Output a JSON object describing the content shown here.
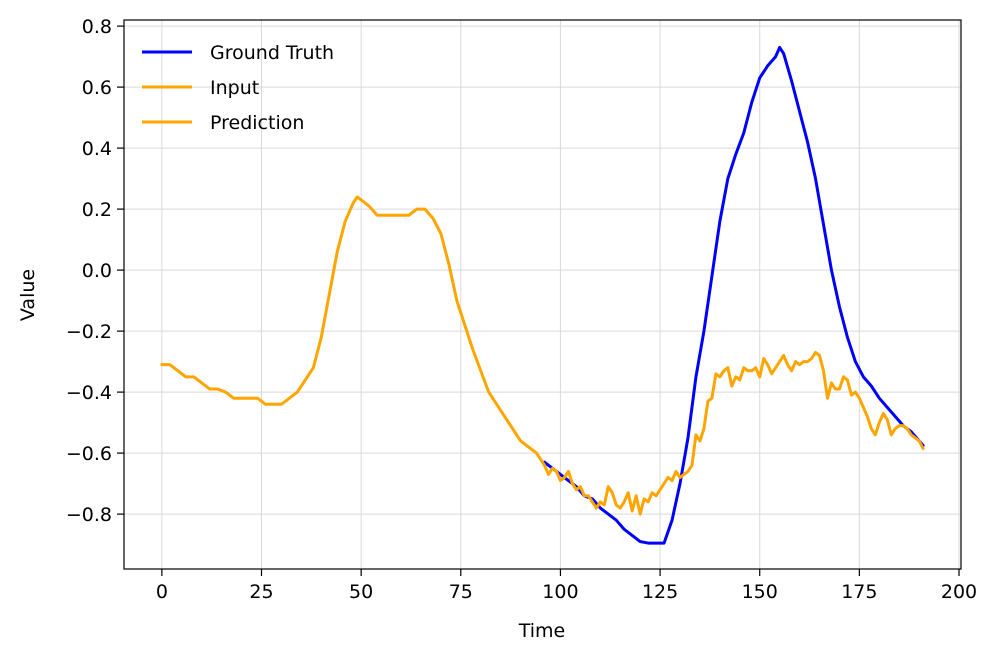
{
  "chart_data": {
    "type": "line",
    "xlabel": "Time",
    "ylabel": "Value",
    "xlim": [
      -9.5,
      200.5
    ],
    "ylim": [
      -0.98,
      0.82
    ],
    "xticks": [
      0,
      25,
      50,
      75,
      100,
      125,
      150,
      175,
      200
    ],
    "yticks": [
      -0.8,
      -0.6,
      -0.4,
      -0.2,
      0.0,
      0.2,
      0.4,
      0.6,
      0.8
    ],
    "xtick_labels": [
      "0",
      "25",
      "50",
      "75",
      "100",
      "125",
      "150",
      "175",
      "200"
    ],
    "ytick_labels": [
      "−0.8",
      "−0.6",
      "−0.4",
      "−0.2",
      "0.0",
      "0.2",
      "0.4",
      "0.6",
      "0.8"
    ],
    "grid": true,
    "legend_position": "upper-left",
    "series": [
      {
        "name": "Ground Truth",
        "color": "#0000ff",
        "points": [
          [
            96,
            -0.63
          ],
          [
            98,
            -0.65
          ],
          [
            100,
            -0.67
          ],
          [
            102,
            -0.69
          ],
          [
            104,
            -0.71
          ],
          [
            106,
            -0.74
          ],
          [
            108,
            -0.75
          ],
          [
            110,
            -0.78
          ],
          [
            112,
            -0.8
          ],
          [
            114,
            -0.82
          ],
          [
            116,
            -0.85
          ],
          [
            118,
            -0.87
          ],
          [
            120,
            -0.89
          ],
          [
            122,
            -0.895
          ],
          [
            124,
            -0.895
          ],
          [
            126,
            -0.895
          ],
          [
            128,
            -0.82
          ],
          [
            130,
            -0.7
          ],
          [
            132,
            -0.55
          ],
          [
            134,
            -0.35
          ],
          [
            136,
            -0.2
          ],
          [
            138,
            -0.02
          ],
          [
            140,
            0.16
          ],
          [
            142,
            0.3
          ],
          [
            144,
            0.38
          ],
          [
            146,
            0.45
          ],
          [
            148,
            0.55
          ],
          [
            150,
            0.63
          ],
          [
            152,
            0.67
          ],
          [
            154,
            0.7
          ],
          [
            155,
            0.73
          ],
          [
            156,
            0.71
          ],
          [
            158,
            0.62
          ],
          [
            160,
            0.52
          ],
          [
            162,
            0.42
          ],
          [
            164,
            0.3
          ],
          [
            166,
            0.15
          ],
          [
            168,
            0.0
          ],
          [
            170,
            -0.12
          ],
          [
            172,
            -0.22
          ],
          [
            174,
            -0.3
          ],
          [
            176,
            -0.35
          ],
          [
            178,
            -0.38
          ],
          [
            180,
            -0.42
          ],
          [
            182,
            -0.45
          ],
          [
            184,
            -0.48
          ],
          [
            186,
            -0.51
          ],
          [
            188,
            -0.53
          ],
          [
            190,
            -0.56
          ],
          [
            191,
            -0.575
          ]
        ]
      },
      {
        "name": "Input",
        "color": "#ffa500",
        "points": [
          [
            0,
            -0.31
          ],
          [
            2,
            -0.31
          ],
          [
            4,
            -0.33
          ],
          [
            6,
            -0.35
          ],
          [
            8,
            -0.35
          ],
          [
            10,
            -0.37
          ],
          [
            12,
            -0.39
          ],
          [
            14,
            -0.39
          ],
          [
            16,
            -0.4
          ],
          [
            18,
            -0.42
          ],
          [
            20,
            -0.42
          ],
          [
            22,
            -0.42
          ],
          [
            24,
            -0.42
          ],
          [
            26,
            -0.44
          ],
          [
            28,
            -0.44
          ],
          [
            30,
            -0.44
          ],
          [
            32,
            -0.42
          ],
          [
            34,
            -0.4
          ],
          [
            36,
            -0.36
          ],
          [
            38,
            -0.32
          ],
          [
            40,
            -0.22
          ],
          [
            42,
            -0.08
          ],
          [
            44,
            0.06
          ],
          [
            46,
            0.16
          ],
          [
            48,
            0.22
          ],
          [
            49,
            0.24
          ],
          [
            50,
            0.23
          ],
          [
            52,
            0.21
          ],
          [
            54,
            0.18
          ],
          [
            56,
            0.18
          ],
          [
            58,
            0.18
          ],
          [
            60,
            0.18
          ],
          [
            62,
            0.18
          ],
          [
            64,
            0.2
          ],
          [
            66,
            0.2
          ],
          [
            68,
            0.17
          ],
          [
            70,
            0.12
          ],
          [
            72,
            0.02
          ],
          [
            74,
            -0.1
          ],
          [
            76,
            -0.18
          ],
          [
            78,
            -0.26
          ],
          [
            80,
            -0.33
          ],
          [
            82,
            -0.4
          ],
          [
            84,
            -0.44
          ],
          [
            86,
            -0.48
          ],
          [
            88,
            -0.52
          ],
          [
            90,
            -0.56
          ],
          [
            92,
            -0.58
          ],
          [
            94,
            -0.6
          ],
          [
            96,
            -0.64
          ]
        ]
      },
      {
        "name": "Prediction",
        "color": "#ffa500",
        "points": [
          [
            96,
            -0.64
          ],
          [
            97,
            -0.67
          ],
          [
            98,
            -0.65
          ],
          [
            99,
            -0.66
          ],
          [
            100,
            -0.69
          ],
          [
            101,
            -0.68
          ],
          [
            102,
            -0.66
          ],
          [
            103,
            -0.7
          ],
          [
            104,
            -0.72
          ],
          [
            105,
            -0.71
          ],
          [
            106,
            -0.74
          ],
          [
            107,
            -0.74
          ],
          [
            108,
            -0.76
          ],
          [
            109,
            -0.78
          ],
          [
            110,
            -0.76
          ],
          [
            111,
            -0.77
          ],
          [
            112,
            -0.71
          ],
          [
            113,
            -0.73
          ],
          [
            114,
            -0.77
          ],
          [
            115,
            -0.78
          ],
          [
            116,
            -0.76
          ],
          [
            117,
            -0.73
          ],
          [
            118,
            -0.79
          ],
          [
            119,
            -0.74
          ],
          [
            120,
            -0.8
          ],
          [
            121,
            -0.75
          ],
          [
            122,
            -0.76
          ],
          [
            123,
            -0.73
          ],
          [
            124,
            -0.74
          ],
          [
            125,
            -0.72
          ],
          [
            126,
            -0.7
          ],
          [
            127,
            -0.68
          ],
          [
            128,
            -0.69
          ],
          [
            129,
            -0.66
          ],
          [
            130,
            -0.68
          ],
          [
            131,
            -0.67
          ],
          [
            132,
            -0.66
          ],
          [
            133,
            -0.64
          ],
          [
            134,
            -0.54
          ],
          [
            135,
            -0.56
          ],
          [
            136,
            -0.52
          ],
          [
            137,
            -0.43
          ],
          [
            138,
            -0.42
          ],
          [
            139,
            -0.34
          ],
          [
            140,
            -0.35
          ],
          [
            141,
            -0.33
          ],
          [
            142,
            -0.32
          ],
          [
            143,
            -0.38
          ],
          [
            144,
            -0.35
          ],
          [
            145,
            -0.36
          ],
          [
            146,
            -0.32
          ],
          [
            147,
            -0.33
          ],
          [
            148,
            -0.33
          ],
          [
            149,
            -0.32
          ],
          [
            150,
            -0.35
          ],
          [
            151,
            -0.29
          ],
          [
            152,
            -0.31
          ],
          [
            153,
            -0.34
          ],
          [
            154,
            -0.32
          ],
          [
            155,
            -0.3
          ],
          [
            156,
            -0.28
          ],
          [
            157,
            -0.31
          ],
          [
            158,
            -0.33
          ],
          [
            159,
            -0.3
          ],
          [
            160,
            -0.31
          ],
          [
            161,
            -0.3
          ],
          [
            162,
            -0.3
          ],
          [
            163,
            -0.29
          ],
          [
            164,
            -0.27
          ],
          [
            165,
            -0.28
          ],
          [
            166,
            -0.33
          ],
          [
            167,
            -0.42
          ],
          [
            168,
            -0.37
          ],
          [
            169,
            -0.39
          ],
          [
            170,
            -0.39
          ],
          [
            171,
            -0.35
          ],
          [
            172,
            -0.36
          ],
          [
            173,
            -0.41
          ],
          [
            174,
            -0.4
          ],
          [
            175,
            -0.42
          ],
          [
            176,
            -0.45
          ],
          [
            177,
            -0.48
          ],
          [
            178,
            -0.52
          ],
          [
            179,
            -0.54
          ],
          [
            180,
            -0.5
          ],
          [
            181,
            -0.47
          ],
          [
            182,
            -0.49
          ],
          [
            183,
            -0.54
          ],
          [
            184,
            -0.52
          ],
          [
            185,
            -0.51
          ],
          [
            186,
            -0.51
          ],
          [
            187,
            -0.52
          ],
          [
            188,
            -0.54
          ],
          [
            189,
            -0.55
          ],
          [
            190,
            -0.56
          ],
          [
            191,
            -0.585
          ]
        ]
      }
    ]
  }
}
